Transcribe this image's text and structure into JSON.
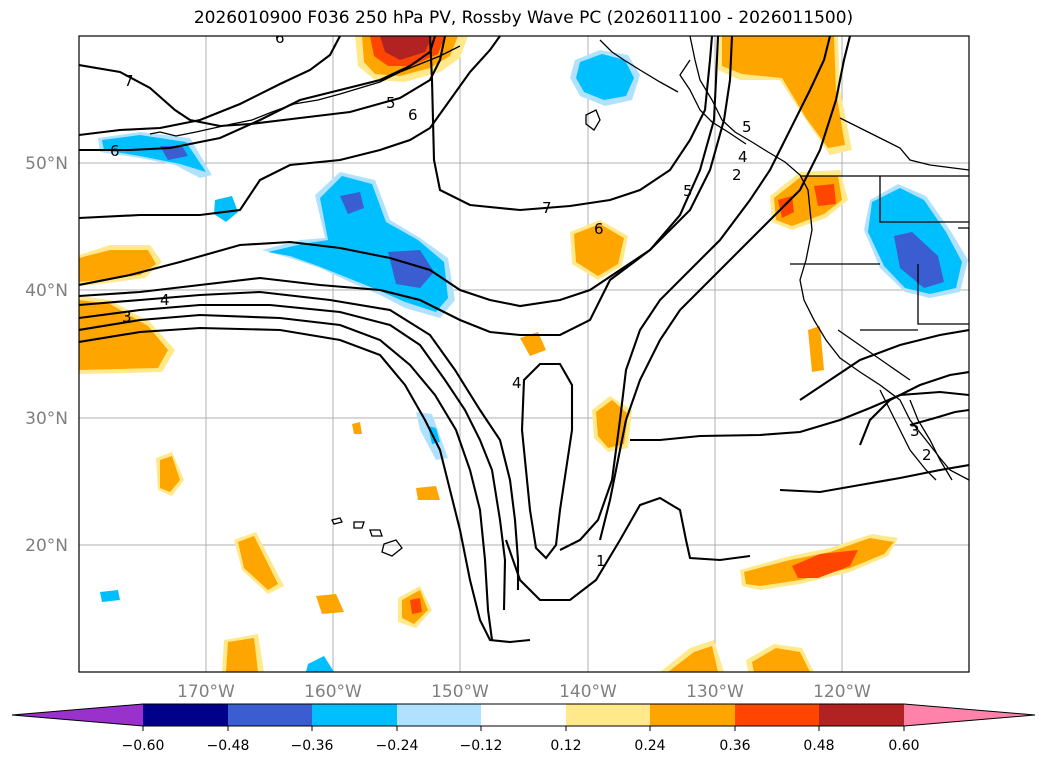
{
  "title": "2026010900 F036 250 hPa PV, Rossby Wave PC (2026011100 - 2026011500)",
  "map": {
    "lon_range": [
      -180,
      -110
    ],
    "lat_range": [
      10,
      60
    ],
    "lat_ticks": [
      "20°N",
      "30°N",
      "40°N",
      "50°N"
    ],
    "lon_ticks": [
      "170°W",
      "160°W",
      "150°W",
      "140°W",
      "130°W",
      "120°W"
    ],
    "contour_labels": [
      "7",
      "6",
      "6",
      "5",
      "6",
      "7",
      "6",
      "5",
      "4",
      "3",
      "4",
      "1",
      "2",
      "4",
      "5",
      "3",
      "2"
    ]
  },
  "colorbar": {
    "ticks": [
      "−0.60",
      "−0.48",
      "−0.36",
      "−0.24",
      "−0.12",
      "0.12",
      "0.24",
      "0.36",
      "0.48",
      "0.60"
    ],
    "colors": [
      "#9932cc",
      "#00008b",
      "#3a5ed1",
      "#00bfff",
      "#b0e2ff",
      "#ffffff",
      "#ffe98a",
      "#ffa500",
      "#ff4500",
      "#b22222",
      "#ff82ab"
    ]
  }
}
